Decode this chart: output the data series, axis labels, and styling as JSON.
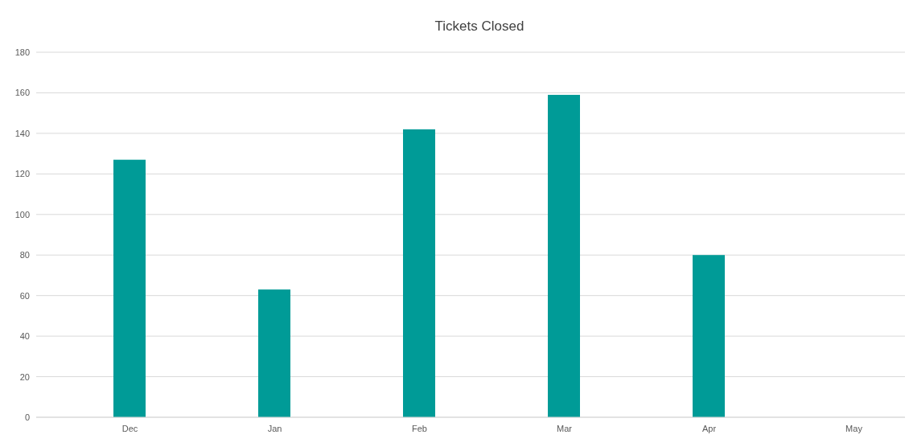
{
  "chart_data": {
    "type": "bar",
    "title": "Tickets Closed",
    "categories": [
      "Dec",
      "Jan",
      "Feb",
      "Mar",
      "Apr",
      "May"
    ],
    "values": [
      127,
      63,
      142,
      159,
      80,
      null
    ],
    "color": "#009b97",
    "ylim": [
      0,
      180
    ],
    "yticks": [
      0,
      20,
      40,
      60,
      80,
      100,
      120,
      140,
      160,
      180
    ],
    "grid": "y"
  }
}
